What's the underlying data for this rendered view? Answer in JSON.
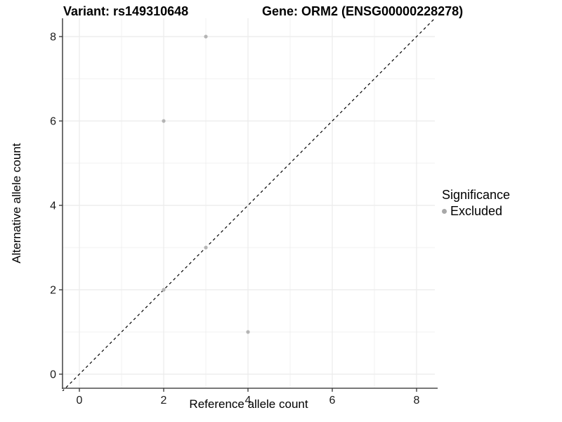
{
  "figure": {
    "title_left": "Variant: rs149310648",
    "title_right": "Gene: ORM2 (ENSG00000228278)"
  },
  "chart_data": {
    "type": "scatter",
    "title": "Variant: rs149310648 / Gene: ORM2 (ENSG00000228278)",
    "xlabel": "Reference allele count",
    "ylabel": "Alternative allele count",
    "xlim": [
      -0.42,
      8.45
    ],
    "ylim": [
      -0.35,
      8.45
    ],
    "x_ticks": [
      0,
      2,
      4,
      6,
      8
    ],
    "y_ticks": [
      0,
      2,
      4,
      6,
      8
    ],
    "minor_ticks": [
      1,
      3,
      5,
      7
    ],
    "grid": true,
    "series": [
      {
        "name": "Excluded",
        "color": "#b4b4b4",
        "points": [
          [
            3,
            8
          ],
          [
            2,
            6
          ],
          [
            3,
            3
          ],
          [
            2,
            2
          ],
          [
            4,
            1
          ]
        ]
      }
    ],
    "reference_line": {
      "type": "identity",
      "style": "dashed",
      "color": "#000000"
    },
    "legend": {
      "title": "Significance",
      "position": "right",
      "items": [
        {
          "label": "Excluded",
          "color": "#a8a8a8"
        }
      ]
    }
  },
  "style": {
    "background": "#ffffff",
    "grid_major": "#ebebeb",
    "grid_minor": "#ebebeb",
    "axis_line": "#4d4d4d",
    "tick_color": "#333333",
    "point_color": "#b4b4b4",
    "ref_line_color": "#000000"
  }
}
